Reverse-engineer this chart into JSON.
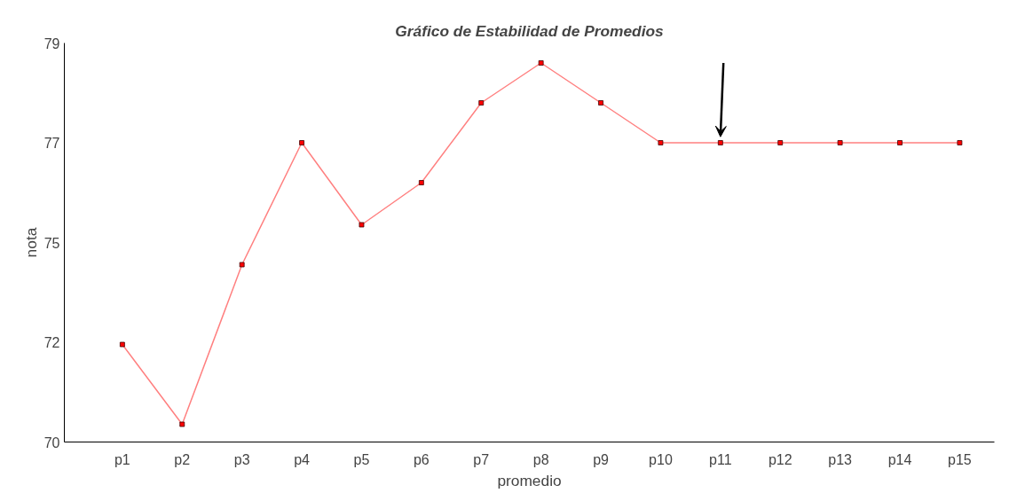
{
  "chart_data": {
    "type": "line",
    "title": "Gráfico de Estabilidad de Promedios",
    "xlabel": "promedio",
    "ylabel": "nota",
    "categories": [
      "p1",
      "p2",
      "p3",
      "p4",
      "p5",
      "p6",
      "p7",
      "p8",
      "p9",
      "p10",
      "p11",
      "p12",
      "p13",
      "p14",
      "p15"
    ],
    "series": [
      {
        "color": "#ff8080",
        "values": [
          72.2,
          70.4,
          74.0,
          76.75,
          74.9,
          75.85,
          77.65,
          78.55,
          77.65,
          76.75,
          76.75,
          76.75,
          76.75,
          76.75,
          76.75
        ]
      }
    ],
    "ylim": [
      70,
      79
    ],
    "yticks": [
      70,
      {
        "value": 72.25,
        "label": "72"
      },
      {
        "value": 74.5,
        "label": "75"
      },
      {
        "value": 76.75,
        "label": "77"
      },
      79
    ],
    "marker": "square",
    "grid": false
  }
}
